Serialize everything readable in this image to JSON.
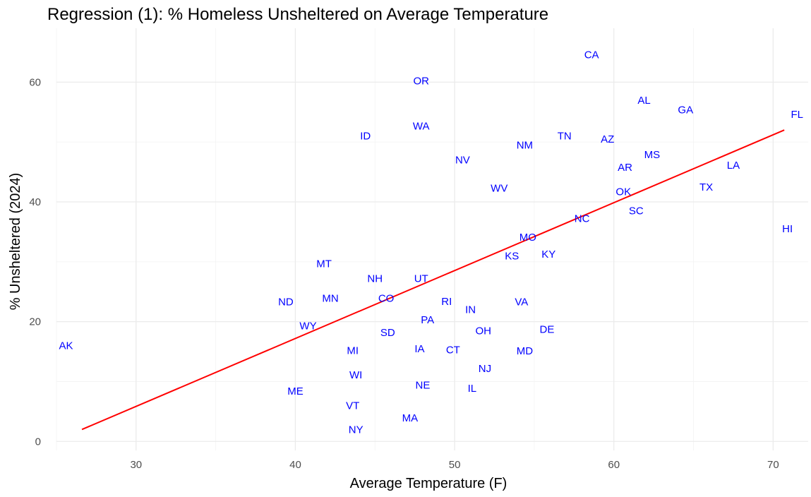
{
  "chart_data": {
    "type": "scatter",
    "title": "Regression (1): % Homeless Unsheltered on Average Temperature",
    "xlabel": "Average Temperature (F)",
    "ylabel": "% Unsheltered (2024)",
    "xlim": [
      25,
      72.2
    ],
    "ylim": [
      -1.5,
      69
    ],
    "xticks": [
      30,
      40,
      50,
      60,
      70
    ],
    "yticks": [
      0,
      20,
      40,
      60
    ],
    "grid": true,
    "label_color": "#0000ff",
    "line_color": "#ff0000",
    "regression_line": {
      "x": [
        26.6,
        70.7
      ],
      "y": [
        2.0,
        52.0
      ]
    },
    "points": [
      {
        "label": "AK",
        "x": 25.6,
        "y": 16.0
      },
      {
        "label": "AL",
        "x": 61.9,
        "y": 57.0
      },
      {
        "label": "AR",
        "x": 60.7,
        "y": 45.8
      },
      {
        "label": "AZ",
        "x": 59.6,
        "y": 50.5
      },
      {
        "label": "CA",
        "x": 58.6,
        "y": 64.6
      },
      {
        "label": "CO",
        "x": 45.7,
        "y": 23.9
      },
      {
        "label": "CT",
        "x": 49.9,
        "y": 15.3
      },
      {
        "label": "DE",
        "x": 55.8,
        "y": 18.7
      },
      {
        "label": "FL",
        "x": 71.5,
        "y": 54.6
      },
      {
        "label": "GA",
        "x": 64.5,
        "y": 55.4
      },
      {
        "label": "HI",
        "x": 70.9,
        "y": 35.5
      },
      {
        "label": "IA",
        "x": 47.8,
        "y": 15.5
      },
      {
        "label": "ID",
        "x": 44.4,
        "y": 51.0
      },
      {
        "label": "IL",
        "x": 51.1,
        "y": 8.9
      },
      {
        "label": "IN",
        "x": 51.0,
        "y": 22.0
      },
      {
        "label": "KS",
        "x": 53.6,
        "y": 31.0
      },
      {
        "label": "KY",
        "x": 55.9,
        "y": 31.3
      },
      {
        "label": "LA",
        "x": 67.5,
        "y": 46.1
      },
      {
        "label": "MA",
        "x": 47.2,
        "y": 3.9
      },
      {
        "label": "MD",
        "x": 54.4,
        "y": 15.1
      },
      {
        "label": "ME",
        "x": 40.0,
        "y": 8.4
      },
      {
        "label": "MI",
        "x": 43.6,
        "y": 15.2
      },
      {
        "label": "MN",
        "x": 42.2,
        "y": 23.9
      },
      {
        "label": "MO",
        "x": 54.6,
        "y": 34.1
      },
      {
        "label": "MS",
        "x": 62.4,
        "y": 47.9
      },
      {
        "label": "MT",
        "x": 41.8,
        "y": 29.7
      },
      {
        "label": "NC",
        "x": 58.0,
        "y": 37.2
      },
      {
        "label": "ND",
        "x": 39.4,
        "y": 23.3
      },
      {
        "label": "NE",
        "x": 48.0,
        "y": 9.4
      },
      {
        "label": "NH",
        "x": 45.0,
        "y": 27.2
      },
      {
        "label": "NJ",
        "x": 51.9,
        "y": 12.2
      },
      {
        "label": "NM",
        "x": 54.4,
        "y": 49.5
      },
      {
        "label": "NV",
        "x": 50.5,
        "y": 47.0
      },
      {
        "label": "NY",
        "x": 43.8,
        "y": 2.0
      },
      {
        "label": "OH",
        "x": 51.8,
        "y": 18.5
      },
      {
        "label": "OK",
        "x": 60.6,
        "y": 41.7
      },
      {
        "label": "OR",
        "x": 47.9,
        "y": 60.2
      },
      {
        "label": "PA",
        "x": 48.3,
        "y": 20.3
      },
      {
        "label": "RI",
        "x": 49.5,
        "y": 23.4
      },
      {
        "label": "SC",
        "x": 61.4,
        "y": 38.5
      },
      {
        "label": "SD",
        "x": 45.8,
        "y": 18.2
      },
      {
        "label": "TN",
        "x": 56.9,
        "y": 51.0
      },
      {
        "label": "TX",
        "x": 65.8,
        "y": 42.5
      },
      {
        "label": "UT",
        "x": 47.9,
        "y": 27.2
      },
      {
        "label": "VA",
        "x": 54.2,
        "y": 23.3
      },
      {
        "label": "VT",
        "x": 43.6,
        "y": 6.0
      },
      {
        "label": "WA",
        "x": 47.9,
        "y": 52.7
      },
      {
        "label": "WI",
        "x": 43.8,
        "y": 11.1
      },
      {
        "label": "WV",
        "x": 52.8,
        "y": 42.3
      },
      {
        "label": "WY",
        "x": 40.8,
        "y": 19.3
      }
    ]
  }
}
